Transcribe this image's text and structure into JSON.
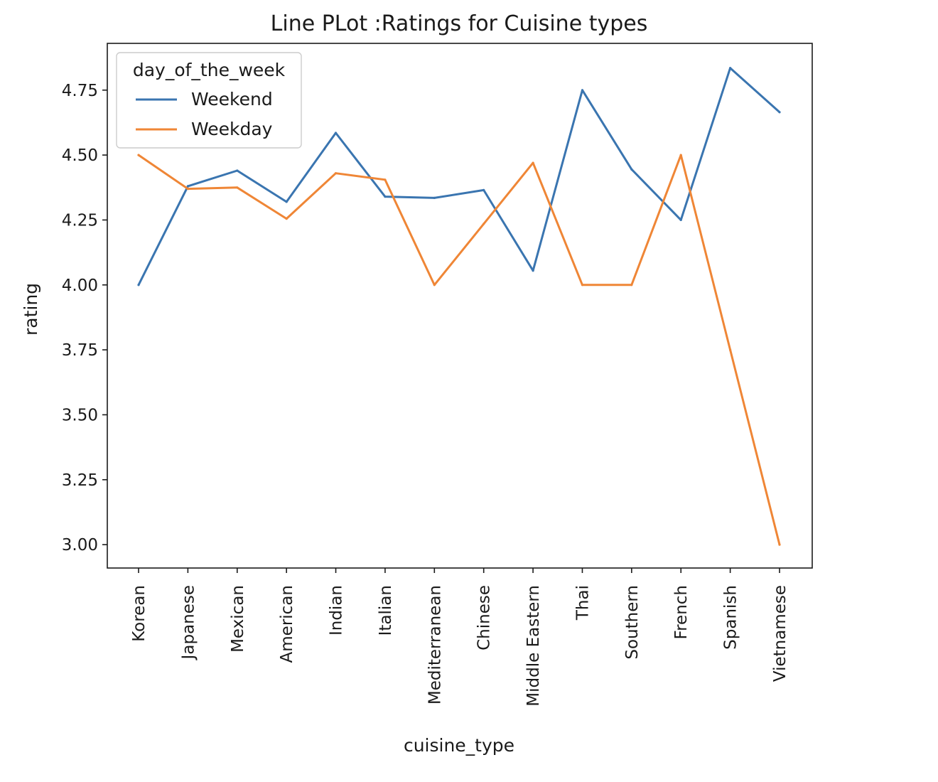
{
  "chart_data": {
    "type": "line",
    "title": "Line PLot :Ratings for Cuisine types",
    "xlabel": "cuisine_type",
    "ylabel": "rating",
    "categories": [
      "Korean",
      "Japanese",
      "Mexican",
      "American",
      "Indian",
      "Italian",
      "Mediterranean",
      "Chinese",
      "Middle Eastern",
      "Thai",
      "Southern",
      "French",
      "Spanish",
      "Vietnamese"
    ],
    "yticks": [
      "3.00",
      "3.25",
      "3.50",
      "3.75",
      "4.00",
      "4.25",
      "4.50",
      "4.75"
    ],
    "ylim": [
      2.91,
      4.93
    ],
    "legend": {
      "title": "day_of_the_week",
      "placement": "top-left"
    },
    "grid": false,
    "series": [
      {
        "name": "Weekend",
        "color": "#3a75b0",
        "values": [
          4.0,
          4.38,
          4.44,
          4.32,
          4.585,
          4.34,
          4.335,
          4.365,
          4.055,
          4.75,
          4.445,
          4.25,
          4.835,
          4.665
        ]
      },
      {
        "name": "Weekday",
        "color": "#ef8636",
        "values": [
          4.5,
          4.37,
          4.375,
          4.255,
          4.43,
          4.405,
          4.0,
          4.235,
          4.47,
          4.0,
          4.0,
          4.5,
          3.75,
          3.0
        ]
      }
    ]
  }
}
